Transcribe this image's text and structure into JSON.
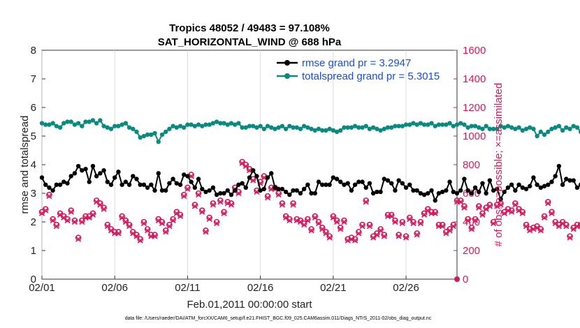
{
  "figure": {
    "title_line1": "Tropics 48052 / 49483 = 97.108%",
    "title_line2": "SAT_HORIZONTAL_WIND @ 688 hPa",
    "xlabel": "Feb.01,2011 00:00:00 start",
    "footnote": "data file: /Users/raeder/DAI/ATM_forcXX/CAM6_setup/f.e21.FHIST_BGC.f09_025.CAM6assim.011/Diags_NTrS_2011-02/obs_diag_output.nc"
  },
  "colors": {
    "rmse": "#000000",
    "spread": "#0a8a7e",
    "nobs": "#d6195e",
    "legend_text": "#1a4fd6"
  },
  "chart_data": {
    "type": "line",
    "title": "Tropics 48052 / 49483 = 97.108% SAT_HORIZONTAL_WIND @ 688 hPa",
    "xlabel": "Feb.01,2011 00:00:00 start",
    "ylabel": "rmse and totalspread",
    "y2label": "# of obs: o=possible; ×=assimilated",
    "x_tick_labels": [
      "02/01",
      "02/06",
      "02/11",
      "02/16",
      "02/21",
      "02/26"
    ],
    "x_tick_days": [
      0,
      5,
      10,
      15,
      20,
      25
    ],
    "xlim": [
      0,
      28.5
    ],
    "ylim": [
      0,
      8
    ],
    "y_ticks": [
      0,
      1,
      2,
      3,
      4,
      5,
      6,
      7,
      8
    ],
    "y2lim": [
      0,
      1600
    ],
    "y2_ticks": [
      0,
      200,
      400,
      600,
      800,
      1000,
      1200,
      1400,
      1600
    ],
    "legend": [
      "rmse grand pr = 3.2947",
      "totalspread grand pr = 5.3015"
    ],
    "legend_location": "top-right",
    "day_step": 0.25,
    "series": [
      {
        "name": "rmse grand pr = 3.2947",
        "axis": "left",
        "values": [
          3.55,
          3.3,
          3.2,
          3.1,
          3.3,
          3.3,
          3.4,
          3.35,
          3.6,
          3.7,
          3.95,
          3.8,
          3.85,
          3.4,
          3.95,
          3.6,
          3.7,
          3.8,
          3.4,
          3.3,
          3.55,
          3.75,
          3.3,
          3.4,
          3.3,
          3.6,
          3.5,
          3.3,
          3.3,
          3.2,
          3.3,
          3.1,
          3.7,
          3.1,
          3.1,
          3.35,
          3.5,
          3.35,
          3.3,
          3.65,
          3.6,
          3.4,
          3.2,
          3.5,
          3.15,
          3.05,
          3.1,
          3.2,
          2.95,
          3.0,
          3.0,
          3.1,
          2.95,
          3.1,
          3.3,
          3.35,
          3.2,
          3.55,
          3.8,
          3.6,
          3.1,
          3.15,
          3.55,
          3.7,
          3.2,
          3.15,
          3.15,
          3.05,
          2.95,
          3.1,
          3.1,
          3.0,
          3.15,
          3.3,
          3.0,
          3.0,
          3.4,
          3.3,
          3.3,
          3.3,
          3.55,
          3.5,
          3.4,
          3.3,
          3.35,
          3.1,
          3.3,
          3.4,
          3.4,
          3.2,
          3.35,
          3.0,
          3.05,
          3.05,
          3.5,
          3.45,
          3.35,
          3.1,
          3.45,
          3.35,
          3.2,
          3.3,
          3.1,
          3.1,
          3.0,
          2.95,
          3.0,
          3.1,
          2.75,
          3.0,
          3.05,
          3.1,
          3.4,
          3.05,
          3.0,
          3.1,
          3.5,
          3.1,
          3.0,
          3.2,
          3.05,
          3.35,
          3.0,
          3.45,
          3.1,
          3.15,
          2.8,
          3.05,
          3.2,
          3.3,
          3.1,
          3.3,
          3.2,
          3.15,
          3.25,
          3.55,
          3.3,
          3.2,
          3.25,
          3.3,
          3.4,
          3.6,
          3.95,
          3.3,
          3.5,
          3.45,
          3.45,
          3.2,
          3.3,
          3.2,
          3.05,
          3.1
        ]
      },
      {
        "name": "totalspread grand pr = 5.3015",
        "axis": "left",
        "values": [
          5.45,
          5.4,
          5.4,
          5.45,
          5.35,
          5.3,
          5.45,
          5.5,
          5.5,
          5.4,
          5.45,
          5.35,
          5.5,
          5.5,
          5.55,
          5.45,
          5.55,
          5.35,
          5.3,
          5.25,
          5.35,
          5.35,
          5.4,
          5.45,
          5.3,
          5.25,
          5.15,
          4.95,
          5.0,
          5.05,
          5.05,
          5.1,
          4.8,
          5.05,
          5.15,
          5.25,
          5.35,
          5.3,
          5.35,
          5.3,
          5.4,
          5.4,
          5.35,
          5.4,
          5.35,
          5.4,
          5.4,
          5.45,
          5.5,
          5.45,
          5.45,
          5.4,
          5.45,
          5.4,
          5.45,
          5.3,
          5.3,
          5.35,
          5.35,
          5.3,
          5.35,
          5.25,
          5.35,
          5.3,
          5.25,
          5.3,
          5.35,
          5.25,
          5.35,
          5.3,
          5.3,
          5.25,
          5.35,
          5.3,
          5.25,
          5.2,
          5.25,
          5.2,
          5.2,
          5.25,
          5.2,
          5.15,
          5.2,
          5.3,
          5.3,
          5.3,
          5.35,
          5.3,
          5.3,
          5.35,
          5.25,
          5.3,
          5.25,
          5.2,
          5.25,
          5.3,
          5.3,
          5.35,
          5.35,
          5.35,
          5.4,
          5.4,
          5.45,
          5.4,
          5.45,
          5.4,
          5.4,
          5.45,
          5.35,
          5.4,
          5.4,
          5.4,
          5.45,
          5.35,
          5.4,
          5.45,
          5.4,
          5.3,
          5.35,
          5.35,
          5.3,
          5.25,
          5.35,
          5.25,
          5.25,
          5.25,
          5.35,
          5.3,
          5.35,
          5.3,
          5.25,
          5.3,
          5.2,
          5.25,
          5.3,
          5.25,
          5.0,
          5.15,
          5.05,
          5.15,
          5.25,
          5.3,
          5.35,
          5.2,
          5.3,
          5.25,
          5.35,
          5.3,
          5.15,
          5.25,
          5.1
        ]
      },
      {
        "name": "# of obs possible",
        "axis": "right",
        "values": [
          470,
          490,
          590,
          420,
          380,
          460,
          440,
          420,
          480,
          410,
          290,
          410,
          440,
          440,
          460,
          550,
          530,
          500,
          380,
          350,
          330,
          330,
          440,
          410,
          380,
          330,
          310,
          280,
          400,
          350,
          310,
          310,
          420,
          400,
          340,
          380,
          420,
          470,
          450,
          590,
          640,
          730,
          520,
          600,
          480,
          340,
          430,
          530,
          400,
          550,
          470,
          540,
          530,
          640,
          610,
          820,
          800,
          770,
          700,
          620,
          680,
          720,
          580,
          640,
          640,
          600,
          530,
          440,
          420,
          530,
          420,
          410,
          390,
          420,
          350,
          440,
          400,
          360,
          330,
          300,
          440,
          410,
          360,
          410,
          280,
          290,
          280,
          330,
          380,
          550,
          380,
          300,
          320,
          350,
          310,
          450,
          450,
          410,
          310,
          400,
          300,
          430,
          400,
          320,
          400,
          460,
          490,
          470,
          470,
          380,
          380,
          330,
          350,
          380,
          550,
          550,
          510,
          420,
          360,
          420,
          510,
          460,
          500,
          520,
          400,
          520,
          530,
          470,
          490,
          480,
          530,
          490,
          470,
          380,
          350,
          360,
          370,
          350,
          440,
          540,
          470,
          400,
          380,
          400,
          380,
          300,
          360,
          380,
          380,
          450
        ]
      },
      {
        "name": "# of obs assimilated",
        "axis": "right",
        "values": [
          460,
          480,
          580,
          410,
          370,
          450,
          430,
          410,
          470,
          400,
          280,
          400,
          430,
          430,
          450,
          540,
          520,
          490,
          370,
          340,
          320,
          320,
          430,
          400,
          370,
          320,
          300,
          270,
          390,
          340,
          300,
          300,
          410,
          390,
          330,
          370,
          410,
          460,
          440,
          580,
          630,
          720,
          510,
          590,
          470,
          330,
          420,
          520,
          390,
          540,
          460,
          530,
          520,
          630,
          600,
          810,
          790,
          760,
          690,
          610,
          670,
          710,
          570,
          630,
          630,
          590,
          520,
          430,
          410,
          520,
          410,
          400,
          380,
          410,
          340,
          430,
          390,
          350,
          320,
          290,
          430,
          400,
          350,
          400,
          270,
          280,
          270,
          320,
          370,
          540,
          370,
          290,
          310,
          340,
          300,
          440,
          440,
          400,
          300,
          390,
          290,
          420,
          390,
          310,
          390,
          450,
          480,
          460,
          460,
          370,
          370,
          320,
          340,
          370,
          540,
          540,
          500,
          410,
          350,
          410,
          500,
          450,
          490,
          510,
          390,
          510,
          520,
          460,
          480,
          470,
          520,
          480,
          460,
          370,
          340,
          350,
          360,
          340,
          430,
          530,
          460,
          390,
          370,
          390,
          370,
          290,
          350,
          370,
          370,
          440
        ]
      }
    ]
  }
}
